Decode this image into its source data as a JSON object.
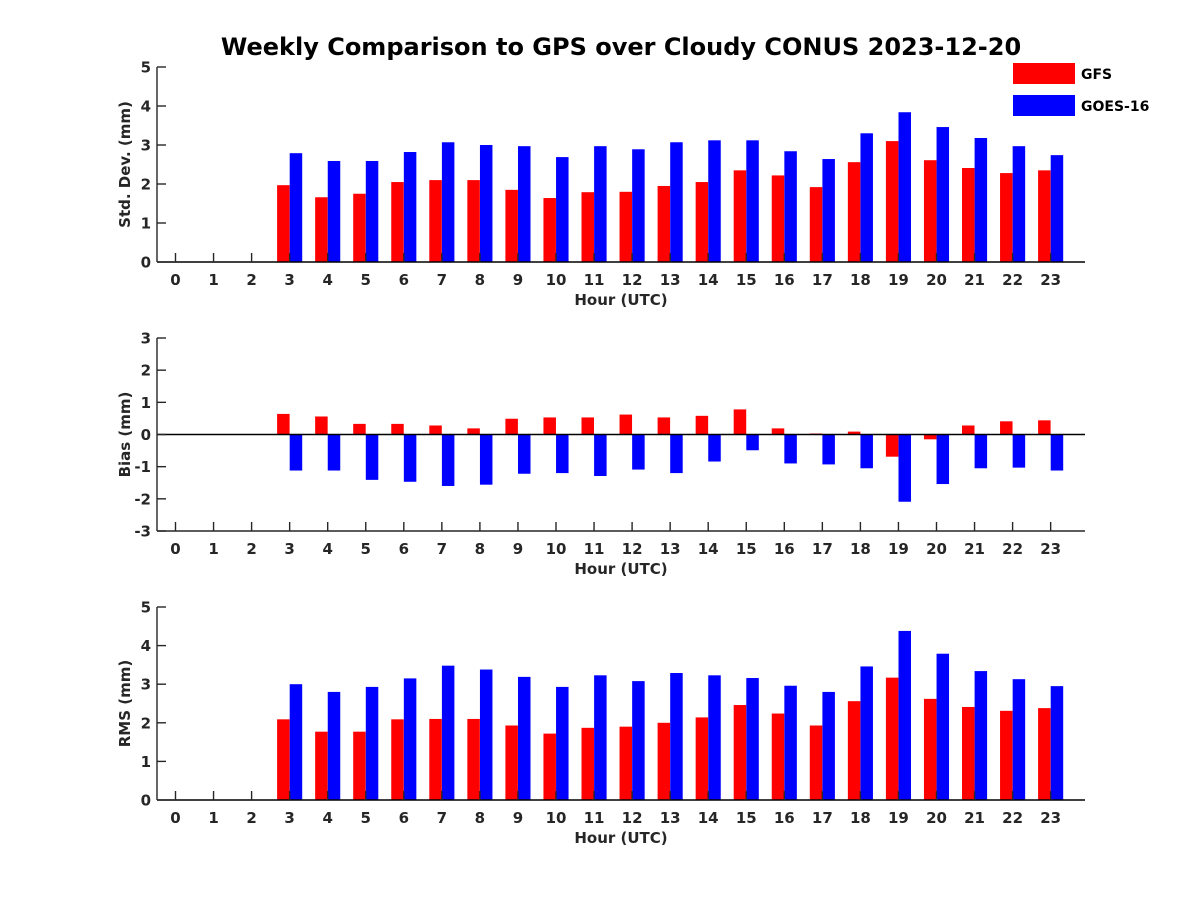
{
  "figure_title": "Weekly Comparison to GPS over Cloudy CONUS 2023-12-20",
  "legend": [
    {
      "label": "GFS",
      "color": "#ff0000"
    },
    {
      "label": "GOES-16",
      "color": "#0000ff"
    }
  ],
  "chart_data": [
    {
      "type": "bar",
      "ylabel": "Std. Dev. (mm)",
      "xlabel": "Hour (UTC)",
      "ylim": [
        0,
        5
      ],
      "yticks": [
        0,
        1,
        2,
        3,
        4,
        5
      ],
      "categories": [
        0,
        1,
        2,
        3,
        4,
        5,
        6,
        7,
        8,
        9,
        10,
        11,
        12,
        13,
        14,
        15,
        16,
        17,
        18,
        19,
        20,
        21,
        22,
        23
      ],
      "series": [
        {
          "name": "GFS",
          "color": "#ff0000",
          "values": [
            null,
            null,
            null,
            1.97,
            1.66,
            1.75,
            2.05,
            2.1,
            2.1,
            1.85,
            1.64,
            1.79,
            1.8,
            1.95,
            2.05,
            2.35,
            2.22,
            1.92,
            2.56,
            3.1,
            2.61,
            2.41,
            2.28,
            2.35
          ]
        },
        {
          "name": "GOES-16",
          "color": "#0000ff",
          "values": [
            null,
            null,
            null,
            2.79,
            2.59,
            2.59,
            2.82,
            3.07,
            3.0,
            2.97,
            2.69,
            2.97,
            2.89,
            3.07,
            3.12,
            3.12,
            2.84,
            2.64,
            3.3,
            3.84,
            3.46,
            3.18,
            2.97,
            2.74
          ]
        }
      ]
    },
    {
      "type": "bar",
      "ylabel": "Bias (mm)",
      "xlabel": "Hour (UTC)",
      "ylim": [
        -3,
        3
      ],
      "yticks": [
        -3,
        -2,
        -1,
        0,
        1,
        2,
        3
      ],
      "categories": [
        0,
        1,
        2,
        3,
        4,
        5,
        6,
        7,
        8,
        9,
        10,
        11,
        12,
        13,
        14,
        15,
        16,
        17,
        18,
        19,
        20,
        21,
        22,
        23
      ],
      "series": [
        {
          "name": "GFS",
          "color": "#ff0000",
          "values": [
            null,
            null,
            null,
            0.64,
            0.56,
            0.33,
            0.33,
            0.28,
            0.19,
            0.49,
            0.53,
            0.53,
            0.62,
            0.53,
            0.58,
            0.78,
            0.19,
            0.03,
            0.09,
            -0.69,
            -0.15,
            0.28,
            0.41,
            0.44
          ]
        },
        {
          "name": "GOES-16",
          "color": "#0000ff",
          "values": [
            null,
            null,
            null,
            -1.12,
            -1.12,
            -1.41,
            -1.47,
            -1.6,
            -1.56,
            -1.22,
            -1.2,
            -1.29,
            -1.09,
            -1.2,
            -0.84,
            -0.49,
            -0.9,
            -0.93,
            -1.05,
            -2.09,
            -1.54,
            -1.05,
            -1.03,
            -1.12
          ]
        }
      ]
    },
    {
      "type": "bar",
      "ylabel": "RMS (mm)",
      "xlabel": "Hour (UTC)",
      "ylim": [
        0,
        5
      ],
      "yticks": [
        0,
        1,
        2,
        3,
        4,
        5
      ],
      "categories": [
        0,
        1,
        2,
        3,
        4,
        5,
        6,
        7,
        8,
        9,
        10,
        11,
        12,
        13,
        14,
        15,
        16,
        17,
        18,
        19,
        20,
        21,
        22,
        23
      ],
      "series": [
        {
          "name": "GFS",
          "color": "#ff0000",
          "values": [
            null,
            null,
            null,
            2.09,
            1.77,
            1.77,
            2.09,
            2.1,
            2.1,
            1.93,
            1.72,
            1.87,
            1.9,
            2.0,
            2.14,
            2.46,
            2.24,
            1.93,
            2.56,
            3.17,
            2.62,
            2.41,
            2.31,
            2.38
          ]
        },
        {
          "name": "GOES-16",
          "color": "#0000ff",
          "values": [
            null,
            null,
            null,
            3.0,
            2.8,
            2.93,
            3.15,
            3.48,
            3.38,
            3.19,
            2.93,
            3.23,
            3.08,
            3.29,
            3.23,
            3.16,
            2.96,
            2.8,
            3.46,
            4.38,
            3.79,
            3.34,
            3.13,
            2.95
          ]
        }
      ]
    }
  ]
}
